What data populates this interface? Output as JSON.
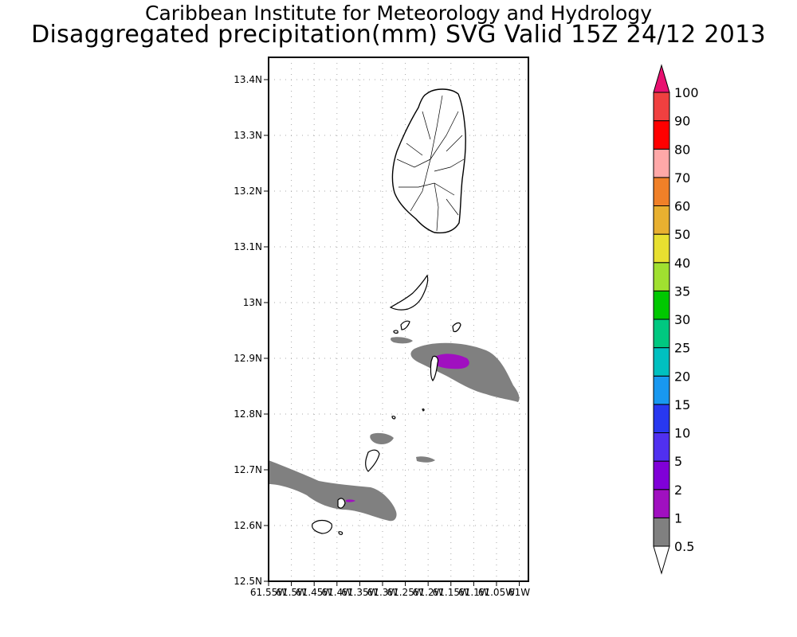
{
  "header": {
    "line1": "Caribbean Institute for Meteorology and Hydrology",
    "line2": "Disaggregated precipitation(mm) SVG Valid 15Z 24/12 2013"
  },
  "map": {
    "lat_ticks": [
      "13.4N",
      "13.3N",
      "13.2N",
      "13.1N",
      "13N",
      "12.9N",
      "12.8N",
      "12.7N",
      "12.6N",
      "12.5N"
    ],
    "lon_ticks": [
      "61.55W",
      "61.5W",
      "61.45W",
      "61.4W",
      "61.35W",
      "61.3W",
      "61.25W",
      "61.2W",
      "61.15W",
      "61.1W",
      "61.05W",
      "61W"
    ],
    "lat_range": [
      12.5,
      13.44
    ],
    "lon_range": [
      -61.55,
      -60.98
    ],
    "grid": true
  },
  "legend": {
    "labels": [
      "0.5",
      "1",
      "2",
      "5",
      "10",
      "15",
      "20",
      "25",
      "30",
      "35",
      "40",
      "50",
      "60",
      "70",
      "80",
      "90",
      "100"
    ],
    "colors": [
      "#808080",
      "#a010c0",
      "#8000d8",
      "#5030f0",
      "#2838f0",
      "#1898f0",
      "#00c0c0",
      "#00c880",
      "#00c800",
      "#a0e030",
      "#e8e030",
      "#e8b030",
      "#f08028",
      "#ffa8a8",
      "#ff0000",
      "#f04040",
      "#e81070"
    ],
    "arrow_low_color": "#ffffff",
    "arrow_high_color": "#e81070"
  }
}
